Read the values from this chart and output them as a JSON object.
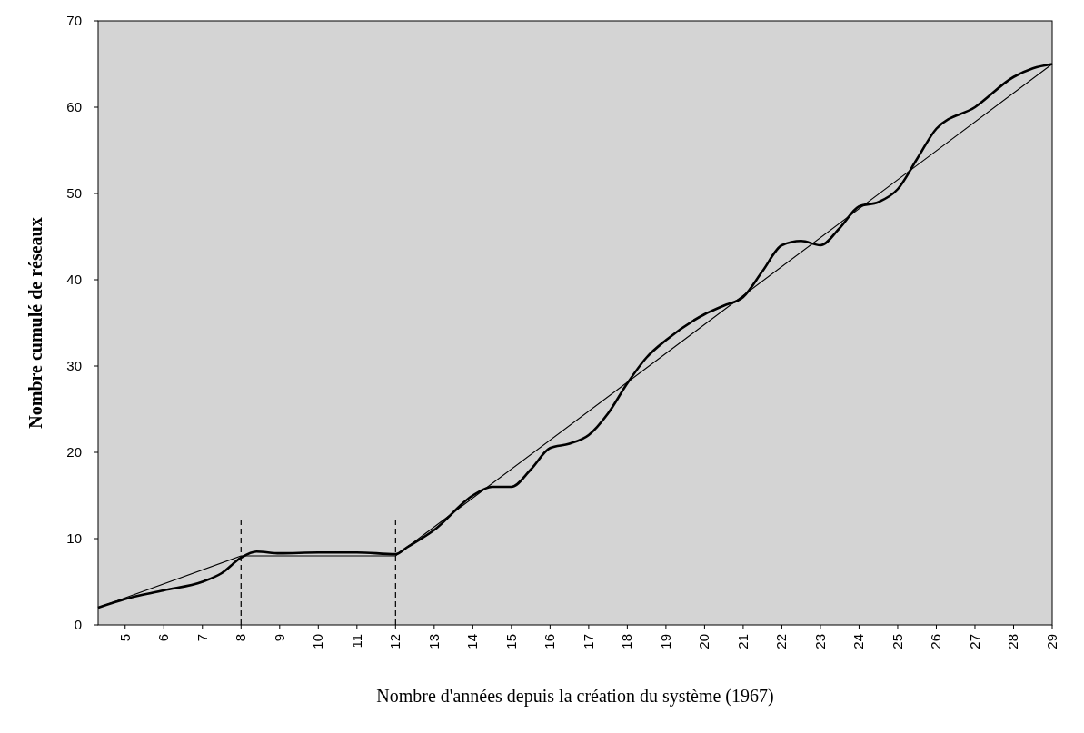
{
  "chart_data": {
    "type": "line",
    "xlabel": "Nombre d'années depuis la création du système (1967)",
    "ylabel": "Nombre cumulé de réseaux",
    "xlim": [
      4.3,
      29
    ],
    "xticks": [
      5,
      6,
      7,
      8,
      9,
      10,
      11,
      12,
      13,
      14,
      15,
      16,
      17,
      18,
      19,
      20,
      21,
      22,
      23,
      24,
      25,
      26,
      27,
      28,
      29
    ],
    "ylim": [
      0,
      70
    ],
    "yticks": [
      0,
      10,
      20,
      30,
      40,
      50,
      60,
      70
    ],
    "series": [
      {
        "color": "#000000",
        "x": [
          4.3,
          5,
          6,
          7,
          7.5,
          8,
          8.4,
          9,
          10,
          11,
          12,
          12.3,
          13,
          14,
          14.5,
          15,
          15.5,
          16,
          16.5,
          17,
          17.5,
          18,
          18.5,
          19,
          20,
          20.5,
          21,
          21.5,
          22,
          22.5,
          23,
          23.5,
          24,
          24.5,
          25,
          25.5,
          26,
          27,
          28,
          28.5,
          29
        ],
        "values": [
          2,
          3,
          4,
          5,
          6,
          7.8,
          8.5,
          8.3,
          8.4,
          8.4,
          8.2,
          9,
          11,
          15,
          16,
          16,
          18,
          20.5,
          21,
          22,
          24.5,
          28,
          31,
          33,
          36,
          37,
          38,
          41,
          44,
          44.5,
          44,
          46,
          48.5,
          49,
          50.5,
          54,
          57.5,
          60,
          63.5,
          64.5,
          65
        ]
      },
      {
        "color": "#000000",
        "x": [
          4.3,
          8,
          12,
          29
        ],
        "values": [
          2,
          8,
          8,
          65
        ]
      }
    ],
    "ref_lines": [
      {
        "axis": "x",
        "value": 8,
        "line_style": "dashed"
      },
      {
        "axis": "x",
        "value": 12,
        "line_style": "dashed"
      }
    ],
    "grid": false
  }
}
